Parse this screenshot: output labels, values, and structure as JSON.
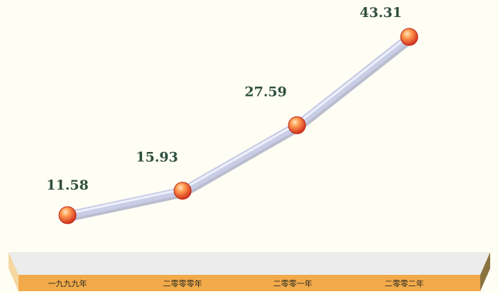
{
  "chart_data": {
    "type": "line",
    "categories": [
      "一九九九年",
      "二零零零年",
      "二零零一年",
      "二零零二年"
    ],
    "series": [
      {
        "values": [
          11.58,
          15.93,
          27.59,
          43.31
        ]
      }
    ],
    "data_labels": [
      "11.58",
      "15.93",
      "27.59",
      "43.31"
    ],
    "title": "",
    "xlabel": "",
    "ylabel": "",
    "grid": false,
    "legend": "none",
    "colors": {
      "background": "#fffef4",
      "line": "#c9cde6",
      "line_highlight": "#eef0fb",
      "line_shadow": "#7f86ae",
      "marker": "#e85a2a",
      "marker_highlight": "#ffd8a8",
      "label": "#2f4f3d",
      "floor_top": "#ececec",
      "floor_front": "#f2aa4a",
      "floor_left": "#f5d7a2",
      "floor_right": "#8b7340"
    }
  }
}
